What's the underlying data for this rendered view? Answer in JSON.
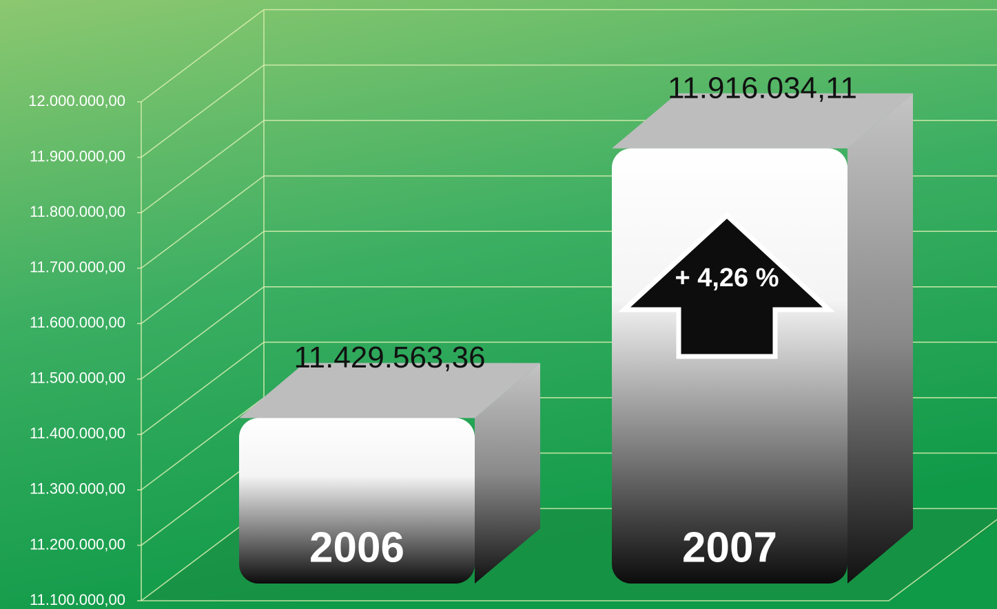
{
  "chart_data": {
    "type": "bar",
    "categories": [
      "2006",
      "2007"
    ],
    "values": [
      11429563.36,
      11916034.11
    ],
    "value_labels": [
      "11.429.563,36",
      "11.916.034,11"
    ],
    "annotation": "+ 4,26 %",
    "ylim": [
      11100000,
      12000000
    ],
    "yticks": [
      {
        "value": 11100000,
        "label": "11.100.000,00"
      },
      {
        "value": 11200000,
        "label": "11.200.000,00"
      },
      {
        "value": 11300000,
        "label": "11.300.000,00"
      },
      {
        "value": 11400000,
        "label": "11.400.000,00"
      },
      {
        "value": 11500000,
        "label": "11.500.000,00"
      },
      {
        "value": 11600000,
        "label": "11.600.000,00"
      },
      {
        "value": 11700000,
        "label": "11.700.000,00"
      },
      {
        "value": 11800000,
        "label": "11.800.000,00"
      },
      {
        "value": 11900000,
        "label": "11.900.000,00"
      },
      {
        "value": 12000000,
        "label": "12.000.000,00"
      }
    ],
    "grid": true
  }
}
